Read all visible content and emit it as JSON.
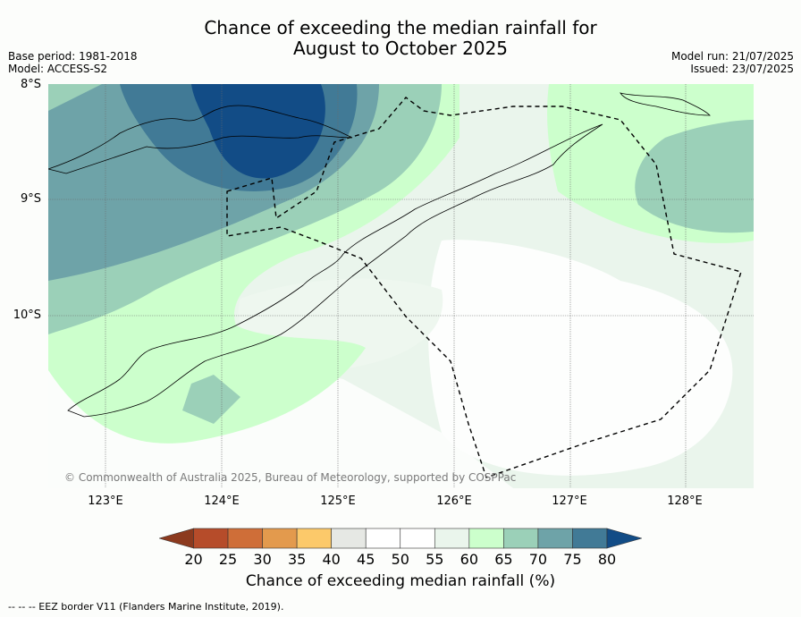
{
  "title_line1": "Chance of exceeding the median rainfall for",
  "title_line2": "August to October 2025",
  "meta_left": [
    "Base period: 1981-2018",
    "Model: ACCESS-S2"
  ],
  "meta_right": [
    "Model run: 21/07/2025",
    "Issued: 23/07/2025"
  ],
  "lat_labels": [
    "8°S",
    "9°S",
    "10°S"
  ],
  "lon_labels": [
    "123°E",
    "124°E",
    "125°E",
    "126°E",
    "127°E",
    "128°E"
  ],
  "copyright": "© Commonwealth of Australia 2025, Bureau of Meteorology, supported by COSPPac",
  "colorbar": {
    "ticks": [
      "20",
      "25",
      "30",
      "35",
      "40",
      "45",
      "50",
      "55",
      "60",
      "65",
      "70",
      "75",
      "80"
    ],
    "colors": [
      "#8c3a1e",
      "#b64c2a",
      "#cf6e38",
      "#e39a4d",
      "#fcc96a",
      "#e6e8e4",
      "#ffffff",
      "#ffffff",
      "#eaf5ec",
      "#ccffcc",
      "#9bd0b8",
      "#6ea3a8",
      "#417a96",
      "#124c86"
    ],
    "label": "Chance of exceeding median rainfall (%)"
  },
  "legend_text": "--  --  -- EEZ border V11 (Flanders Marine Institute, 2019)."
}
